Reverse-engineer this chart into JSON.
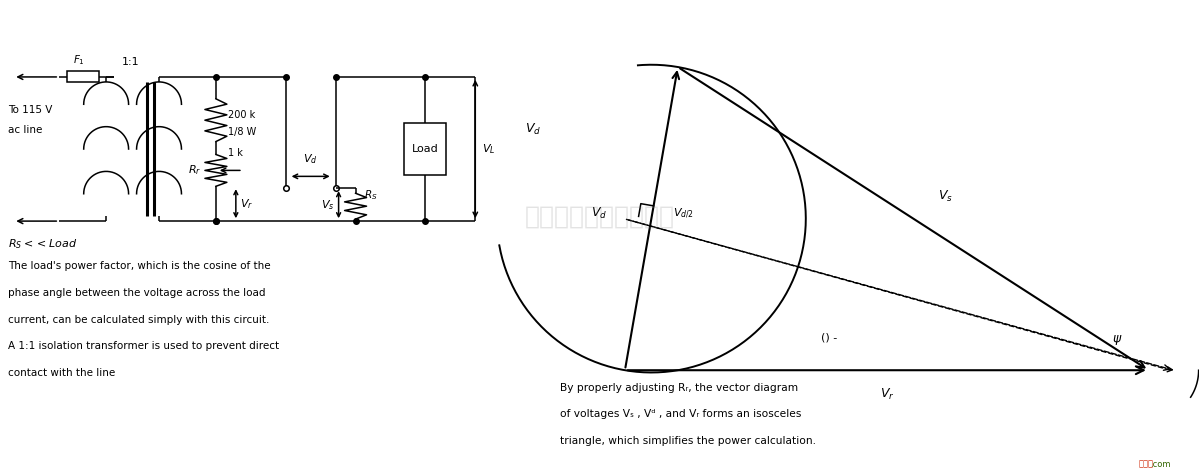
{
  "bg_color": "#ffffff",
  "fig_width": 12.0,
  "fig_height": 4.76,
  "dpi": 100,
  "left_text_lines": [
    "The load's power factor, which is the cosine of the",
    "phase angle between the voltage across the load",
    "current, can be calculated simply with this circuit.",
    "A 1:1 isolation transformer is used to prevent direct",
    "contact with the line"
  ],
  "right_text_lines": [
    "By properly adjusting Rᵣ, the vector diagram",
    "of voltages Vₛ , Vᵈ , and Vᵣ forms an isosceles",
    "triangle, which simplifies the power calculation."
  ]
}
